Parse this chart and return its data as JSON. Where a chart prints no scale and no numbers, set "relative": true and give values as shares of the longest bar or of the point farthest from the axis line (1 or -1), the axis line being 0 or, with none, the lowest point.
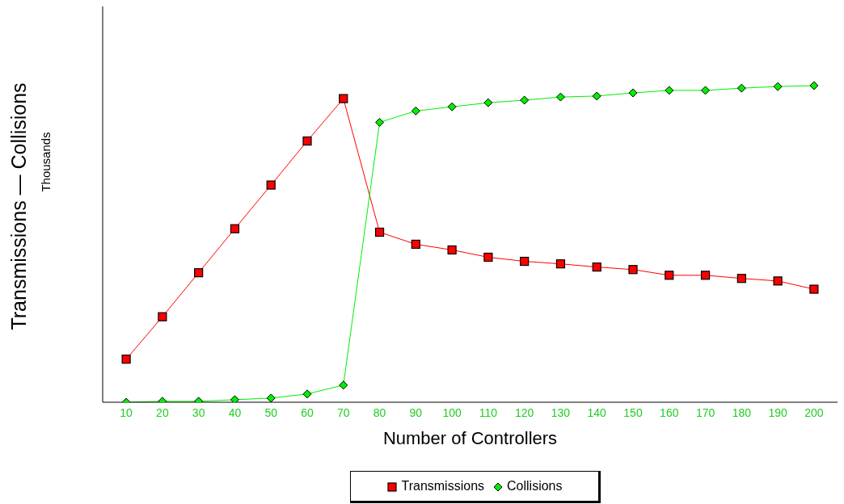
{
  "chart_data": {
    "type": "line",
    "relative": true,
    "xlabel": "Number of Controllers",
    "ylabel": "Transmissions — Collisions",
    "annotations": [
      "Thousands"
    ],
    "categories": [
      "10",
      "20",
      "30",
      "40",
      "50",
      "60",
      "70",
      "80",
      "90",
      "100",
      "110",
      "120",
      "130",
      "140",
      "150",
      "160",
      "170",
      "180",
      "190",
      "200"
    ],
    "legend": "bottom",
    "grid": false,
    "series": [
      {
        "name": "Transmissions",
        "color": "#ff0000",
        "marker": "square",
        "values": [
          0.136,
          0.27,
          0.409,
          0.548,
          0.686,
          0.825,
          0.959,
          0.537,
          0.499,
          0.481,
          0.458,
          0.445,
          0.437,
          0.427,
          0.419,
          0.401,
          0.401,
          0.391,
          0.383,
          0.357
        ]
      },
      {
        "name": "Collisions",
        "color": "#00ee00",
        "marker": "diamond",
        "values": [
          0,
          0.003,
          0.003,
          0.008,
          0.013,
          0.026,
          0.054,
          0.884,
          0.92,
          0.933,
          0.946,
          0.954,
          0.964,
          0.967,
          0.977,
          0.985,
          0.985,
          0.992,
          0.997,
          1
        ]
      }
    ]
  }
}
